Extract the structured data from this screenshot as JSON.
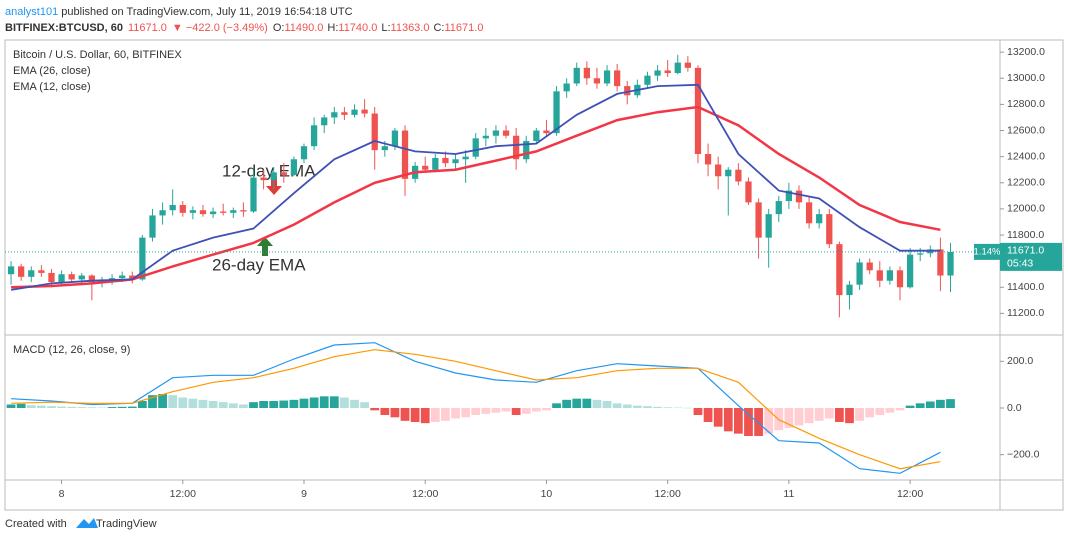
{
  "header": {
    "author": "analyst101",
    "published": " published on TradingView.com, July 11, 2019 16:54:18 UTC",
    "symbol": "BITFINEX:BTCUSD, 60",
    "last": "11671.0",
    "change": "▼ −422.0 (−3.49%)",
    "ohlc": [
      {
        "label": "O:",
        "value": "11490.0"
      },
      {
        "label": "H:",
        "value": "11740.0"
      },
      {
        "label": "L:",
        "value": "11363.0"
      },
      {
        "label": "C:",
        "value": "11671.0"
      }
    ]
  },
  "price_tag": {
    "change": "1.14%",
    "price": "11671.0",
    "countdown": "05:43"
  },
  "annotations": [
    "12-day EMA",
    "26-day EMA"
  ],
  "footer": {
    "prefix": "Created with",
    "brand": "TradingView"
  },
  "chart_data": [
    {
      "type": "candlestick",
      "title": "Bitcoin / U.S. Dollar, 60, BITFINEX",
      "up_color": "#26a69a",
      "down_color": "#ef5350",
      "last_line_color": "#26a69a",
      "x": [
        -5,
        -4,
        -3,
        -2,
        -1,
        0,
        1,
        2,
        3,
        4,
        5,
        6,
        7,
        8,
        9,
        10,
        11,
        12,
        13,
        14,
        15,
        16,
        17,
        18,
        19,
        20,
        21,
        22,
        23,
        24,
        25,
        26,
        27,
        28,
        29,
        30,
        31,
        32,
        33,
        34,
        35,
        36,
        37,
        38,
        39,
        40,
        41,
        42,
        43,
        44,
        45,
        46,
        47,
        48,
        49,
        50,
        51,
        52,
        53,
        54,
        55,
        56,
        57,
        58,
        59,
        60,
        61,
        62,
        63,
        64,
        65,
        66,
        67,
        68,
        69,
        70,
        71,
        72,
        73,
        74,
        75,
        76,
        77,
        78,
        79,
        80,
        81,
        82,
        83,
        84,
        85,
        86,
        87,
        88
      ],
      "ohlc": [
        [
          11500,
          11600,
          11420,
          11560
        ],
        [
          11560,
          11580,
          11450,
          11480
        ],
        [
          11480,
          11560,
          11440,
          11530
        ],
        [
          11530,
          11570,
          11480,
          11510
        ],
        [
          11510,
          11540,
          11400,
          11440
        ],
        [
          11440,
          11530,
          11420,
          11500
        ],
        [
          11500,
          11520,
          11440,
          11460
        ],
        [
          11460,
          11510,
          11420,
          11490
        ],
        [
          11490,
          11500,
          11300,
          11440
        ],
        [
          11440,
          11480,
          11400,
          11460
        ],
        [
          11460,
          11500,
          11420,
          11470
        ],
        [
          11470,
          11520,
          11440,
          11490
        ],
        [
          11490,
          11520,
          11430,
          11460
        ],
        [
          11460,
          11800,
          11450,
          11780
        ],
        [
          11780,
          12000,
          11750,
          11950
        ],
        [
          11950,
          12050,
          11880,
          11990
        ],
        [
          11990,
          12150,
          11950,
          12030
        ],
        [
          12030,
          12060,
          11940,
          11970
        ],
        [
          11970,
          12020,
          11920,
          11990
        ],
        [
          11990,
          12030,
          11940,
          11960
        ],
        [
          11960,
          12010,
          11930,
          11980
        ],
        [
          11980,
          12040,
          11950,
          11970
        ],
        [
          11970,
          12010,
          11930,
          11990
        ],
        [
          11990,
          12050,
          11940,
          11980
        ],
        [
          11980,
          12300,
          11970,
          12240
        ],
        [
          12240,
          12300,
          12150,
          12220
        ],
        [
          12220,
          12320,
          12150,
          12280
        ],
        [
          12280,
          12350,
          12200,
          12260
        ],
        [
          12260,
          12400,
          12250,
          12380
        ],
        [
          12380,
          12500,
          12350,
          12480
        ],
        [
          12480,
          12700,
          12450,
          12640
        ],
        [
          12640,
          12720,
          12580,
          12700
        ],
        [
          12700,
          12780,
          12650,
          12740
        ],
        [
          12740,
          12780,
          12680,
          12720
        ],
        [
          12720,
          12800,
          12700,
          12760
        ],
        [
          12760,
          12840,
          12700,
          12730
        ],
        [
          12730,
          12780,
          12300,
          12450
        ],
        [
          12450,
          12520,
          12400,
          12480
        ],
        [
          12480,
          12620,
          12450,
          12600
        ],
        [
          12600,
          12640,
          12100,
          12230
        ],
        [
          12230,
          12360,
          12200,
          12330
        ],
        [
          12330,
          12400,
          12280,
          12300
        ],
        [
          12300,
          12420,
          12280,
          12390
        ],
        [
          12390,
          12440,
          12320,
          12350
        ],
        [
          12350,
          12420,
          12300,
          12380
        ],
        [
          12380,
          12450,
          12200,
          12400
        ],
        [
          12400,
          12580,
          12380,
          12540
        ],
        [
          12540,
          12620,
          12480,
          12560
        ],
        [
          12560,
          12640,
          12500,
          12600
        ],
        [
          12600,
          12640,
          12540,
          12560
        ],
        [
          12560,
          12620,
          12300,
          12380
        ],
        [
          12380,
          12560,
          12350,
          12520
        ],
        [
          12520,
          12620,
          12500,
          12600
        ],
        [
          12600,
          12680,
          12560,
          12580
        ],
        [
          12580,
          12940,
          12560,
          12900
        ],
        [
          12900,
          13000,
          12850,
          12960
        ],
        [
          12960,
          13120,
          12940,
          13080
        ],
        [
          13080,
          13130,
          12950,
          13000
        ],
        [
          13000,
          13080,
          12920,
          12960
        ],
        [
          12960,
          13100,
          12940,
          13060
        ],
        [
          13060,
          13110,
          12900,
          12940
        ],
        [
          12940,
          12980,
          12800,
          12870
        ],
        [
          12870,
          12990,
          12850,
          12950
        ],
        [
          12950,
          13050,
          12920,
          13020
        ],
        [
          13020,
          13100,
          12980,
          13060
        ],
        [
          13060,
          13140,
          13010,
          13040
        ],
        [
          13040,
          13180,
          13030,
          13120
        ],
        [
          13120,
          13170,
          13050,
          13080
        ],
        [
          13080,
          13100,
          12350,
          12420
        ],
        [
          12420,
          12500,
          12250,
          12340
        ],
        [
          12340,
          12400,
          12150,
          12250
        ],
        [
          12250,
          12320,
          11950,
          12300
        ],
        [
          12300,
          12350,
          12180,
          12210
        ],
        [
          12210,
          12240,
          12030,
          12050
        ],
        [
          12050,
          12080,
          11620,
          11780
        ],
        [
          11780,
          12000,
          11550,
          11960
        ],
        [
          11960,
          12100,
          11900,
          12060
        ],
        [
          12060,
          12200,
          12000,
          12140
        ],
        [
          12140,
          12180,
          12000,
          12050
        ],
        [
          12050,
          12100,
          11850,
          11890
        ],
        [
          11890,
          12000,
          11850,
          11960
        ],
        [
          11960,
          12000,
          11700,
          11730
        ],
        [
          11730,
          11750,
          11170,
          11340
        ],
        [
          11340,
          11450,
          11230,
          11420
        ],
        [
          11420,
          11620,
          11380,
          11590
        ],
        [
          11590,
          11620,
          11500,
          11530
        ],
        [
          11530,
          11600,
          11400,
          11450
        ],
        [
          11450,
          11560,
          11420,
          11530
        ],
        [
          11530,
          11560,
          11300,
          11400
        ],
        [
          11400,
          11700,
          11390,
          11650
        ],
        [
          11650,
          11700,
          11600,
          11660
        ],
        [
          11660,
          11720,
          11630,
          11690
        ],
        [
          11690,
          11780,
          11370,
          11490
        ],
        [
          11490,
          11740,
          11363,
          11671
        ]
      ],
      "series": [
        {
          "name": "EMA (26, close)",
          "color": "#f23645",
          "x": [
            -5,
            -1,
            3,
            7,
            11,
            15,
            19,
            23,
            27,
            31,
            35,
            39,
            43,
            47,
            51,
            55,
            59,
            63,
            67,
            71,
            75,
            79,
            83,
            87
          ],
          "values": [
            11400,
            11410,
            11430,
            11460,
            11560,
            11650,
            11740,
            11880,
            12050,
            12200,
            12280,
            12300,
            12370,
            12440,
            12560,
            12680,
            12740,
            12780,
            12640,
            12420,
            12240,
            12030,
            11900,
            11840
          ]
        },
        {
          "name": "EMA (12, close)",
          "color": "#3f51b5",
          "x": [
            -5,
            -1,
            3,
            7,
            11,
            15,
            19,
            23,
            27,
            31,
            35,
            39,
            43,
            47,
            51,
            55,
            59,
            63,
            67,
            71,
            75,
            79,
            83,
            87
          ],
          "values": [
            11380,
            11430,
            11450,
            11460,
            11680,
            11780,
            11850,
            12120,
            12380,
            12520,
            12440,
            12420,
            12480,
            12500,
            12720,
            12880,
            12940,
            12950,
            12420,
            12140,
            12080,
            11860,
            11680,
            11680
          ]
        }
      ],
      "xlim": [
        -5.6,
        92.9
      ],
      "ylim": [
        11050,
        13270
      ],
      "yticks": [
        {
          "value": 11200,
          "label": "11200.0"
        },
        {
          "value": 11400,
          "label": "11400.0"
        },
        {
          "value": 11600,
          "label": "11600.0"
        },
        {
          "value": 11800,
          "label": "11800.0"
        },
        {
          "value": 12000,
          "label": "12000.0"
        },
        {
          "value": 12200,
          "label": "12200.0"
        },
        {
          "value": 12400,
          "label": "12400.0"
        },
        {
          "value": 12600,
          "label": "12600.0"
        },
        {
          "value": 12800,
          "label": "12800.0"
        },
        {
          "value": 13000,
          "label": "13000.0"
        },
        {
          "value": 13200,
          "label": "13200.0"
        }
      ],
      "grid": false
    },
    {
      "type": "macd",
      "title": "MACD (12, 26, close, 9)",
      "colors": {
        "up_rising": "#26a69a",
        "up_falling": "#b2dfdb",
        "down_falling": "#ef5350",
        "down_rising": "#ffcdd2"
      },
      "histogram": [
        15,
        18,
        12,
        10,
        8,
        6,
        5,
        4,
        3,
        2,
        4,
        5,
        6,
        30,
        55,
        60,
        55,
        45,
        40,
        35,
        30,
        25,
        20,
        15,
        25,
        30,
        30,
        32,
        35,
        40,
        45,
        50,
        50,
        45,
        35,
        25,
        -10,
        -30,
        -40,
        -55,
        -60,
        -65,
        -60,
        -55,
        -45,
        -40,
        -30,
        -25,
        -20,
        -15,
        -30,
        -25,
        -15,
        -10,
        20,
        35,
        40,
        40,
        35,
        30,
        20,
        15,
        10,
        8,
        5,
        3,
        2,
        1,
        -30,
        -60,
        -80,
        -100,
        -110,
        -120,
        -120,
        -110,
        -95,
        -85,
        -75,
        -65,
        -55,
        -45,
        -60,
        -65,
        -55,
        -40,
        -30,
        -20,
        -10,
        10,
        20,
        28,
        35,
        38
      ],
      "series": [
        {
          "name": "MACD",
          "color": "#2196f3",
          "x": [
            -5,
            -1,
            3,
            7,
            11,
            15,
            19,
            23,
            27,
            31,
            35,
            39,
            43,
            47,
            51,
            55,
            59,
            63,
            67,
            71,
            75,
            79,
            83,
            87
          ],
          "values": [
            40,
            30,
            15,
            20,
            130,
            140,
            140,
            210,
            270,
            280,
            200,
            150,
            120,
            110,
            160,
            190,
            180,
            170,
            10,
            -140,
            -150,
            -260,
            -280,
            -190
          ]
        },
        {
          "name": "Signal",
          "color": "#ff9800",
          "x": [
            -5,
            -1,
            3,
            7,
            11,
            15,
            19,
            23,
            27,
            31,
            35,
            39,
            43,
            47,
            51,
            55,
            59,
            63,
            67,
            71,
            75,
            79,
            83,
            87
          ],
          "values": [
            20,
            25,
            20,
            20,
            70,
            110,
            130,
            170,
            220,
            250,
            230,
            200,
            160,
            120,
            130,
            160,
            170,
            170,
            110,
            -50,
            -130,
            -200,
            -260,
            -230
          ]
        }
      ],
      "ylim": [
        -300,
        300
      ],
      "yticks": [
        {
          "value": -200,
          "label": "−200.0"
        },
        {
          "value": 0,
          "label": "0.0"
        },
        {
          "value": 200,
          "label": "200.0"
        }
      ],
      "xticks": [
        {
          "value": 0,
          "label": "8"
        },
        {
          "value": 12,
          "label": "12:00"
        },
        {
          "value": 24,
          "label": "9"
        },
        {
          "value": 36,
          "label": "12:00"
        },
        {
          "value": 48,
          "label": "10"
        },
        {
          "value": 60,
          "label": "12:00"
        },
        {
          "value": 72,
          "label": "11"
        },
        {
          "value": 84,
          "label": "12:00"
        }
      ]
    }
  ]
}
